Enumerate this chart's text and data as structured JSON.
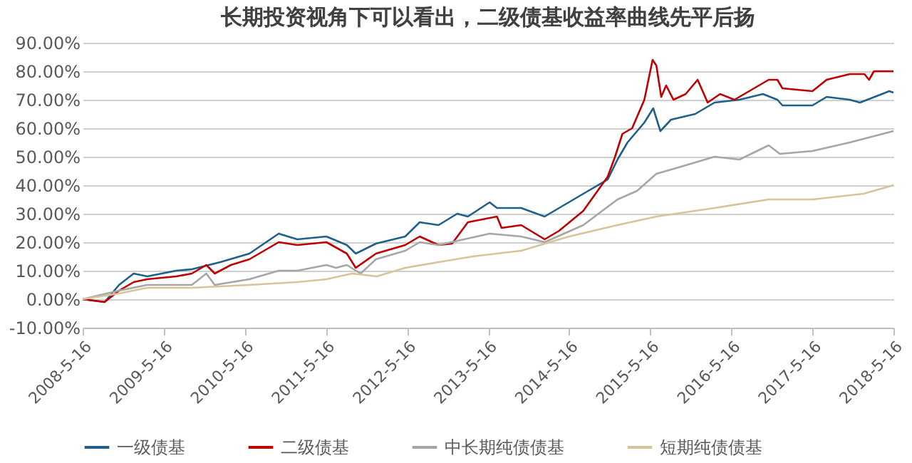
{
  "chart_data": {
    "type": "line",
    "title": "长期投资视角下可以看出，二级债基收益率曲线先平后扬",
    "series": [
      {
        "name": "一级债基",
        "color": "#1f5f8b",
        "x": [
          "2008-05-16",
          "2008-08-23",
          "2008-10-27",
          "2009-01-01",
          "2009-03-03",
          "2009-07-12",
          "2009-09-20",
          "2010-01-26",
          "2010-06-06",
          "2010-10-16",
          "2011-01-08",
          "2011-05-19",
          "2011-08-19",
          "2011-09-28",
          "2011-12-28",
          "2012-05-08",
          "2012-07-12",
          "2012-10-05",
          "2012-12-28",
          "2013-02-14",
          "2013-05-23",
          "2013-06-25",
          "2013-10-12",
          "2014-01-26",
          "2014-04-01",
          "2014-07-19",
          "2014-11-06",
          "2014-12-20",
          "2015-02-03",
          "2015-04-20",
          "2015-05-30",
          "2015-07-01",
          "2015-08-18",
          "2015-12-05",
          "2016-03-01",
          "2016-06-21",
          "2016-10-05",
          "2016-12-09",
          "2017-01-01",
          "2017-05-16",
          "2017-07-19",
          "2017-10-31",
          "2017-12-16",
          "2018-04-27",
          "2018-05-16"
        ],
        "values": [
          0,
          -1,
          5,
          9,
          8,
          10,
          10.5,
          13,
          16,
          23,
          21,
          22,
          19,
          16,
          19.5,
          22,
          27,
          26,
          30,
          29,
          34,
          32,
          32,
          29,
          32,
          37,
          42,
          49,
          55,
          62,
          67,
          59,
          63,
          65,
          69,
          70,
          72,
          70,
          68,
          68,
          71,
          70,
          69,
          73,
          72.5
        ]
      },
      {
        "name": "二级债基",
        "color": "#c00000",
        "x": [
          "2008-05-16",
          "2008-08-23",
          "2008-10-27",
          "2009-01-01",
          "2009-03-03",
          "2009-07-12",
          "2009-09-20",
          "2009-11-24",
          "2010-01-01",
          "2010-03-15",
          "2010-06-06",
          "2010-10-16",
          "2011-01-08",
          "2011-05-19",
          "2011-08-19",
          "2011-09-28",
          "2011-12-28",
          "2012-05-08",
          "2012-07-12",
          "2012-10-05",
          "2012-12-05",
          "2013-02-14",
          "2013-06-25",
          "2013-07-16",
          "2013-10-12",
          "2014-01-26",
          "2014-04-01",
          "2014-07-19",
          "2014-11-06",
          "2014-12-09",
          "2015-01-11",
          "2015-02-24",
          "2015-04-20",
          "2015-05-27",
          "2015-06-13",
          "2015-07-05",
          "2015-07-27",
          "2015-08-29",
          "2015-10-23",
          "2015-12-16",
          "2016-01-30",
          "2016-03-26",
          "2016-05-30",
          "2016-08-04",
          "2016-10-31",
          "2016-12-09",
          "2017-01-01",
          "2017-05-16",
          "2017-07-19",
          "2017-10-31",
          "2018-01-05",
          "2018-01-26",
          "2018-02-17",
          "2018-05-16"
        ],
        "values": [
          0,
          -1,
          3,
          6,
          7,
          8,
          9,
          12,
          9,
          12,
          14,
          20,
          19,
          20,
          16,
          11,
          16,
          19,
          22,
          19,
          19.5,
          27,
          29,
          25,
          26,
          21,
          24,
          31,
          43,
          50,
          58,
          60,
          70,
          84,
          82,
          71,
          75,
          70,
          72,
          77,
          69,
          72,
          70,
          73,
          77,
          77,
          74,
          73,
          77,
          79,
          79,
          77,
          80,
          80
        ]
      },
      {
        "name": "中长期纯债债基",
        "color": "#a6a6a6",
        "x": [
          "2008-05-16",
          "2008-10-27",
          "2009-03-03",
          "2009-07-12",
          "2009-09-20",
          "2009-11-24",
          "2010-01-01",
          "2010-06-06",
          "2010-10-16",
          "2011-01-08",
          "2011-05-19",
          "2011-07-01",
          "2011-08-19",
          "2011-10-20",
          "2011-12-28",
          "2012-05-08",
          "2012-07-12",
          "2012-10-05",
          "2013-05-23",
          "2013-10-12",
          "2014-01-26",
          "2014-07-19",
          "2014-12-20",
          "2015-03-18",
          "2015-06-13",
          "2015-09-10",
          "2016-03-01",
          "2016-06-21",
          "2016-10-31",
          "2016-12-20",
          "2017-05-16",
          "2017-10-31",
          "2018-05-16"
        ],
        "values": [
          0,
          3,
          5,
          5,
          5,
          9,
          5,
          7,
          10,
          10,
          12,
          11,
          12,
          9,
          14,
          17,
          20,
          19,
          23,
          22,
          20,
          26,
          35,
          38,
          44,
          46,
          50,
          49,
          54,
          51,
          52,
          55,
          59
        ]
      },
      {
        "name": "短期纯债债基",
        "color": "#d9c39a",
        "x": [
          "2008-05-16",
          "2008-10-27",
          "2009-03-03",
          "2009-09-20",
          "2010-06-06",
          "2011-01-08",
          "2011-05-19",
          "2011-09-12",
          "2012-01-01",
          "2012-05-08",
          "2012-10-05",
          "2013-03-08",
          "2013-10-12",
          "2014-05-16",
          "2014-12-20",
          "2015-06-13",
          "2016-03-01",
          "2016-10-31",
          "2017-05-16",
          "2018-01-01",
          "2018-05-16"
        ],
        "values": [
          0,
          2,
          4,
          4,
          5,
          6,
          7,
          9,
          8,
          11,
          13,
          15,
          17,
          22,
          26,
          29,
          32,
          35,
          35,
          37,
          40
        ]
      }
    ],
    "ylim": [
      -10,
      90
    ],
    "yticks": [
      {
        "value": -10,
        "label": "-10.00%"
      },
      {
        "value": 0,
        "label": "0.00%"
      },
      {
        "value": 10,
        "label": "10.00%"
      },
      {
        "value": 20,
        "label": "20.00%"
      },
      {
        "value": 30,
        "label": "30.00%"
      },
      {
        "value": 40,
        "label": "40.00%"
      },
      {
        "value": 50,
        "label": "50.00%"
      },
      {
        "value": 60,
        "label": "60.00%"
      },
      {
        "value": 70,
        "label": "70.00%"
      },
      {
        "value": 80,
        "label": "80.00%"
      },
      {
        "value": 90,
        "label": "90.00%"
      }
    ],
    "xlim": [
      "2008-05-16",
      "2018-05-16"
    ],
    "xticks": [
      {
        "value": "2008-05-16",
        "label": "2008-5-16"
      },
      {
        "value": "2009-05-16",
        "label": "2009-5-16"
      },
      {
        "value": "2010-05-16",
        "label": "2010-5-16"
      },
      {
        "value": "2011-05-16",
        "label": "2011-5-16"
      },
      {
        "value": "2012-05-16",
        "label": "2012-5-16"
      },
      {
        "value": "2013-05-16",
        "label": "2013-5-16"
      },
      {
        "value": "2014-05-16",
        "label": "2014-5-16"
      },
      {
        "value": "2015-05-16",
        "label": "2015-5-16"
      },
      {
        "value": "2016-05-16",
        "label": "2016-5-16"
      },
      {
        "value": "2017-05-16",
        "label": "2017-5-16"
      },
      {
        "value": "2018-05-16",
        "label": "2018-5-16"
      }
    ],
    "grid": "y",
    "legend": "bottom",
    "marker": "none",
    "line_style": "solid"
  }
}
